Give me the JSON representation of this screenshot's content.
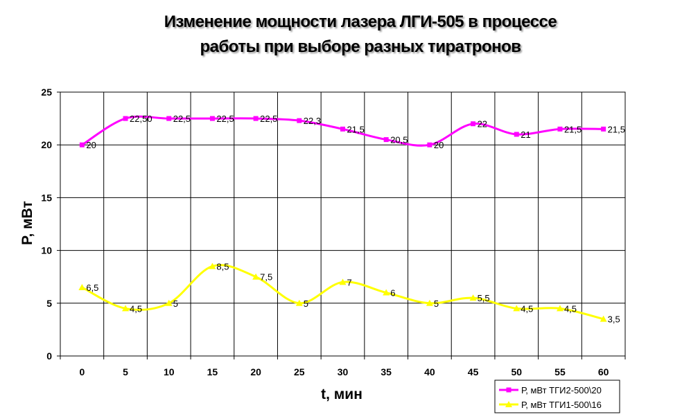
{
  "chart_data": {
    "type": "line",
    "title_lines": [
      "Изменение мощности лазера ЛГИ-505 в процессе",
      "работы при выборе разных тиратронов"
    ],
    "xlabel": "t, мин",
    "ylabel": "P, мВт",
    "categories": [
      "0",
      "5",
      "10",
      "15",
      "20",
      "25",
      "30",
      "35",
      "40",
      "45",
      "50",
      "55",
      "60"
    ],
    "ylim": [
      0,
      25
    ],
    "yticks": [
      0,
      5,
      10,
      15,
      20,
      25
    ],
    "grid": true,
    "smooth": true,
    "legend_position": "bottom-right",
    "series": [
      {
        "name": "Р, мВт ТГИ2-500\\20",
        "color": "#ff00ff",
        "marker": "square",
        "values": [
          20,
          22.5,
          22.5,
          22.5,
          22.5,
          22.3,
          21.5,
          20.5,
          20,
          22,
          21,
          21.5,
          21.5
        ],
        "labels": [
          "20",
          "22,50",
          "22,5",
          "22,5",
          "22,5",
          "22,3",
          "21,5",
          "20,5",
          "20",
          "22",
          "21",
          "21,5",
          "21,5"
        ]
      },
      {
        "name": "Р, мВт ТГИ1-500\\16",
        "color": "#ffff00",
        "marker": "triangle",
        "values": [
          6.5,
          4.5,
          5,
          8.5,
          7.5,
          5,
          7,
          6,
          5,
          5.5,
          4.5,
          4.5,
          3.5
        ],
        "labels": [
          "6,5",
          "4,5",
          "5",
          "8,5",
          "7,5",
          "5",
          "7",
          "6",
          "5",
          "5,5",
          "4,5",
          "4,5",
          "3,5"
        ]
      }
    ]
  }
}
